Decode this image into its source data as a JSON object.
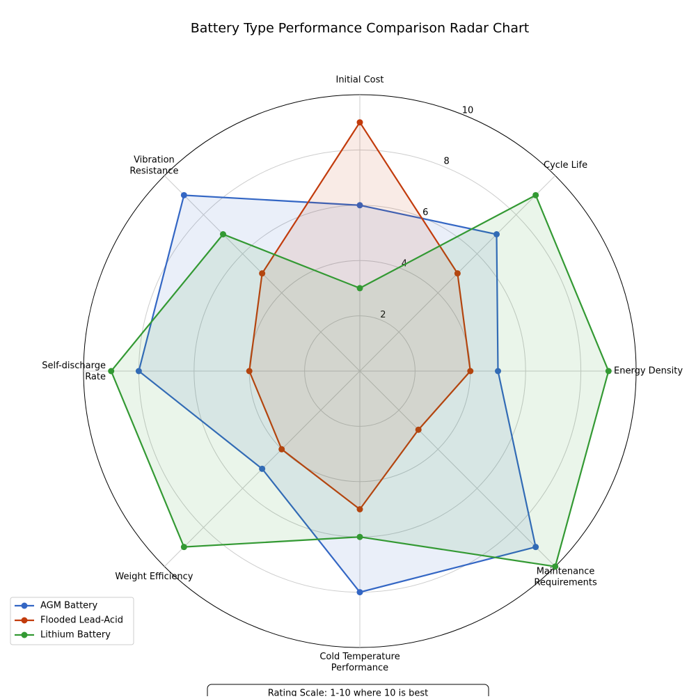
{
  "chart_data": {
    "type": "radar",
    "title": "Battery Type Performance Comparison Radar Chart",
    "categories": [
      "Initial Cost",
      "Cycle Life",
      "Energy Density",
      "Maintenance\nRequirements",
      "Cold Temperature\nPerformance",
      "Weight Efficiency",
      "Self-discharge\nRate",
      "Vibration\nResistance"
    ],
    "series": [
      {
        "name": "AGM Battery",
        "color": "#3366c4",
        "values": [
          6,
          7,
          5,
          9,
          8,
          5,
          8,
          9
        ]
      },
      {
        "name": "Flooded Lead-Acid",
        "color": "#c23b0c",
        "values": [
          9,
          5,
          4,
          3,
          5,
          4,
          4,
          5
        ]
      },
      {
        "name": "Lithium Battery",
        "color": "#339933",
        "values": [
          3,
          9,
          9,
          10,
          6,
          9,
          9,
          7
        ]
      }
    ],
    "rlim": [
      0,
      10
    ],
    "rticks": [
      2,
      4,
      6,
      8,
      10
    ],
    "grid": true,
    "legend": "lower left",
    "annotation": "Rating Scale: 1-10 where 10 is best"
  }
}
